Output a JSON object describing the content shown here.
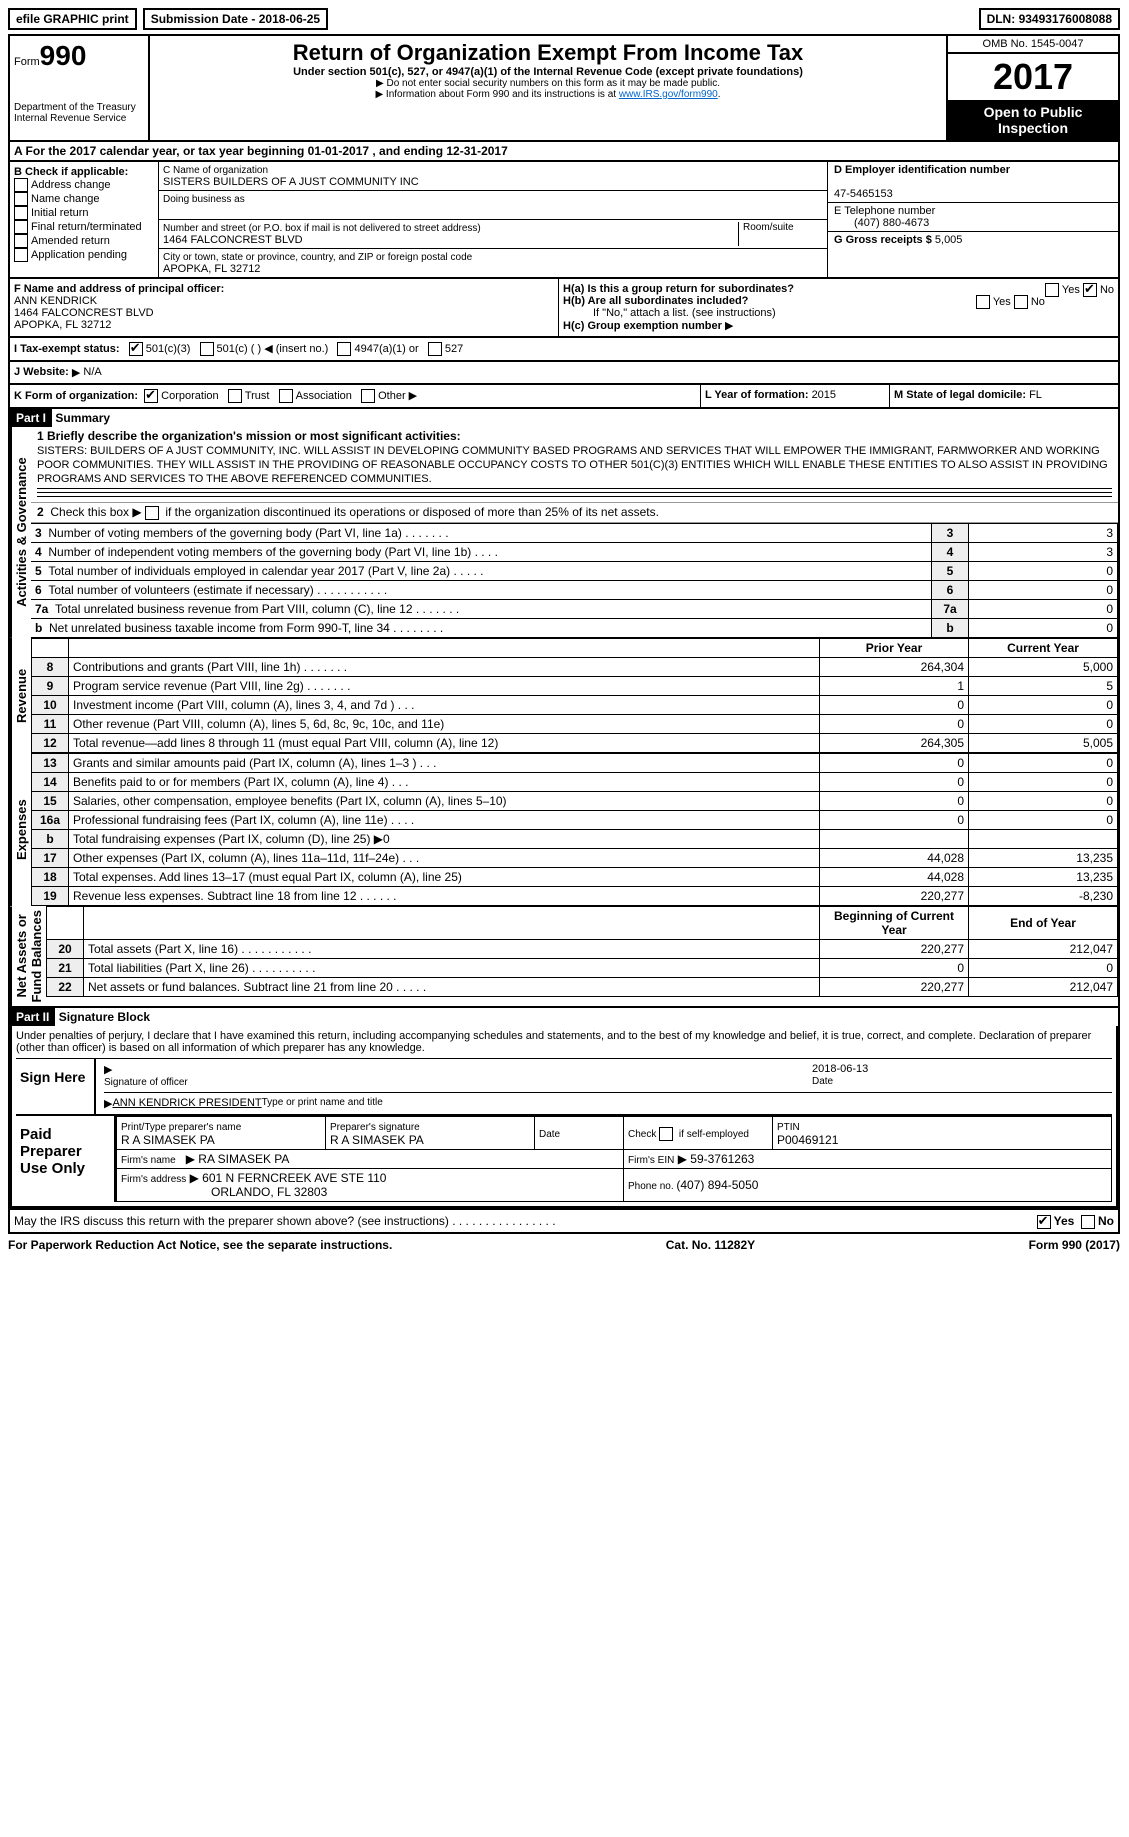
{
  "topbar": {
    "efile": "efile GRAPHIC print",
    "subdate_label": "Submission Date - ",
    "subdate": "2018-06-25",
    "dln_label": "DLN: ",
    "dln": "93493176008088"
  },
  "header": {
    "form_word": "Form",
    "form_num": "990",
    "dept1": "Department of the Treasury",
    "dept2": "Internal Revenue Service",
    "title": "Return of Organization Exempt From Income Tax",
    "sub1": "Under section 501(c), 527, or 4947(a)(1) of the Internal Revenue Code (except private foundations)",
    "sub2": "Do not enter social security numbers on this form as it may be made public.",
    "sub3": "Information about Form 990 and its instructions is at ",
    "link": "www.IRS.gov/form990",
    "omb": "OMB No. 1545-0047",
    "year": "2017",
    "open": "Open to Public Inspection"
  },
  "A": {
    "text": "A  For the 2017 calendar year, or tax year beginning 01-01-2017    , and ending 12-31-2017"
  },
  "B": {
    "title": "B Check if applicable:",
    "items": [
      "Address change",
      "Name change",
      "Initial return",
      "Final return/terminated",
      "Amended return",
      "Application pending"
    ]
  },
  "C": {
    "name_label": "C Name of organization",
    "name": "SISTERS BUILDERS OF A JUST COMMUNITY INC",
    "dba": "Doing business as",
    "street_label": "Number and street (or P.O. box if mail is not delivered to street address)",
    "room": "Room/suite",
    "street": "1464 FALCONCREST BLVD",
    "city_label": "City or town, state or province, country, and ZIP or foreign postal code",
    "city": "APOPKA, FL  32712"
  },
  "D": {
    "label": "D Employer identification number",
    "val": "47-5465153"
  },
  "E": {
    "label": "E Telephone number",
    "val": "(407) 880-4673"
  },
  "G": {
    "label": "G Gross receipts $ ",
    "val": "5,005"
  },
  "F": {
    "label": "F  Name and address of principal officer:",
    "name": "ANN KENDRICK",
    "street": "1464 FALCONCREST BLVD",
    "city": "APOPKA, FL  32712"
  },
  "H": {
    "a": "H(a)  Is this a group return for subordinates?",
    "b": "H(b)  Are all subordinates included?",
    "ifno": "If \"No,\" attach a list. (see instructions)",
    "c": "H(c)  Group exemption number",
    "yes": "Yes",
    "no": "No"
  },
  "I": {
    "label": "I  Tax-exempt status:",
    "opts": [
      "501(c)(3)",
      "501(c) (  )",
      "(insert no.)",
      "4947(a)(1) or",
      "527"
    ]
  },
  "J": {
    "label": "J  Website:",
    "val": "N/A"
  },
  "K": {
    "label": "K Form of organization:",
    "opts": [
      "Corporation",
      "Trust",
      "Association",
      "Other"
    ]
  },
  "L": {
    "label": "L Year of formation: ",
    "val": "2015"
  },
  "M": {
    "label": "M State of legal domicile: ",
    "val": "FL"
  },
  "partI": {
    "hdr": "Part I",
    "title": "Summary",
    "l1": "1  Briefly describe the organization's mission or most significant activities:",
    "mission": "SISTERS: BUILDERS OF A JUST COMMUNITY, INC. WILL ASSIST IN DEVELOPING COMMUNITY BASED PROGRAMS AND SERVICES THAT WILL EMPOWER THE IMMIGRANT, FARMWORKER AND WORKING POOR COMMUNITIES. THEY WILL ASSIST IN THE PROVIDING OF REASONABLE OCCUPANCY COSTS TO OTHER 501(C)(3) ENTITIES WHICH WILL ENABLE THESE ENTITIES TO ALSO ASSIST IN PROVIDING PROGRAMS AND SERVICES TO THE ABOVE REFERENCED COMMUNITIES.",
    "l2": "2   Check this box        if the organization discontinued its operations or disposed of more than 25% of its net assets.",
    "govrows": [
      {
        "n": "3",
        "d": "Number of voting members of the governing body (Part VI, line 1a)   .    .    .    .    .    .    .",
        "v": "3"
      },
      {
        "n": "4",
        "d": "Number of independent voting members of the governing body (Part VI, line 1b)    .    .    .    .",
        "v": "3"
      },
      {
        "n": "5",
        "d": "Total number of individuals employed in calendar year 2017 (Part V, line 2a)    .    .    .    .    .",
        "v": "0"
      },
      {
        "n": "6",
        "d": "Total number of volunteers (estimate if necessary)   .    .    .    .    .    .    .    .    .    .    .",
        "v": "0"
      },
      {
        "n": "7a",
        "d": "Total unrelated business revenue from Part VIII, column (C), line 12   .    .    .    .    .    .    .",
        "v": "0"
      },
      {
        "n": "b",
        "d": "Net unrelated business taxable income from Form 990-T, line 34   .    .    .    .    .    .    .    .",
        "v": "0"
      }
    ],
    "colhdr_prior": "Prior Year",
    "colhdr_curr": "Current Year",
    "revrows": [
      {
        "n": "8",
        "d": "Contributions and grants (Part VIII, line 1h)   .    .    .    .    .    .    .",
        "p": "264,304",
        "c": "5,000"
      },
      {
        "n": "9",
        "d": "Program service revenue (Part VIII, line 2g)   .    .    .    .    .    .    .",
        "p": "1",
        "c": "5"
      },
      {
        "n": "10",
        "d": "Investment income (Part VIII, column (A), lines 3, 4, and 7d )   .    .    .",
        "p": "0",
        "c": "0"
      },
      {
        "n": "11",
        "d": "Other revenue (Part VIII, column (A), lines 5, 6d, 8c, 9c, 10c, and 11e)",
        "p": "0",
        "c": "0"
      },
      {
        "n": "12",
        "d": "Total revenue—add lines 8 through 11 (must equal Part VIII, column (A), line 12)",
        "p": "264,305",
        "c": "5,005"
      }
    ],
    "exprows": [
      {
        "n": "13",
        "d": "Grants and similar amounts paid (Part IX, column (A), lines 1–3 )   .    .    .",
        "p": "0",
        "c": "0"
      },
      {
        "n": "14",
        "d": "Benefits paid to or for members (Part IX, column (A), line 4)   .    .    .",
        "p": "0",
        "c": "0"
      },
      {
        "n": "15",
        "d": "Salaries, other compensation, employee benefits (Part IX, column (A), lines 5–10)",
        "p": "0",
        "c": "0"
      },
      {
        "n": "16a",
        "d": "Professional fundraising fees (Part IX, column (A), line 11e)   .    .    .    .",
        "p": "0",
        "c": "0"
      },
      {
        "n": "b",
        "d": "Total fundraising expenses (Part IX, column (D), line 25) ▶0",
        "p": "",
        "c": ""
      },
      {
        "n": "17",
        "d": "Other expenses (Part IX, column (A), lines 11a–11d, 11f–24e)   .    .    .",
        "p": "44,028",
        "c": "13,235"
      },
      {
        "n": "18",
        "d": "Total expenses. Add lines 13–17 (must equal Part IX, column (A), line 25)",
        "p": "44,028",
        "c": "13,235"
      },
      {
        "n": "19",
        "d": "Revenue less expenses. Subtract line 18 from line 12 .    .    .    .    .    .",
        "p": "220,277",
        "c": "-8,230"
      }
    ],
    "colhdr_beg": "Beginning of Current Year",
    "colhdr_end": "End of Year",
    "netrows": [
      {
        "n": "20",
        "d": "Total assets (Part X, line 16)   .    .    .    .    .    .    .    .    .    .    .",
        "p": "220,277",
        "c": "212,047"
      },
      {
        "n": "21",
        "d": "Total liabilities (Part X, line 26)   .    .    .    .    .    .    .    .    .    .",
        "p": "0",
        "c": "0"
      },
      {
        "n": "22",
        "d": "Net assets or fund balances. Subtract line 21 from line 20 .    .    .    .    .",
        "p": "220,277",
        "c": "212,047"
      }
    ],
    "vlabels": {
      "gov": "Activities & Governance",
      "rev": "Revenue",
      "exp": "Expenses",
      "net": "Net Assets or\nFund Balances"
    }
  },
  "partII": {
    "hdr": "Part II",
    "title": "Signature Block",
    "decl": "Under penalties of perjury, I declare that I have examined this return, including accompanying schedules and statements, and to the best of my knowledge and belief, it is true, correct, and complete. Declaration of preparer (other than officer) is based on all information of which preparer has any knowledge.",
    "sign_here": "Sign Here",
    "sig_officer": "Signature of officer",
    "date": "Date",
    "sigdate": "2018-06-13",
    "typed": "ANN KENDRICK PRESIDENT",
    "typed_label": "Type or print name and title",
    "paid": "Paid Preparer Use Only",
    "prep_name_label": "Print/Type preparer's name",
    "prep_name": "R A SIMASEK PA",
    "prep_sig_label": "Preparer's signature",
    "prep_sig": "R A SIMASEK PA",
    "prep_date": "Date",
    "check_self": "Check        if self-employed",
    "ptin_label": "PTIN",
    "ptin": "P00469121",
    "firm_name_label": "Firm's name",
    "firm_name": "RA SIMASEK PA",
    "firm_ein_label": "Firm's EIN",
    "firm_ein": "59-3761263",
    "firm_addr_label": "Firm's address",
    "firm_addr1": "601 N FERNCREEK AVE STE 110",
    "firm_addr2": "ORLANDO, FL  32803",
    "phone_label": "Phone no. ",
    "phone": "(407) 894-5050",
    "discuss": "May the IRS discuss this return with the preparer shown above? (see instructions)   .    .    .    .    .    .    .    .    .    .    .    .    .    .    .    .",
    "yes": "Yes",
    "no": "No"
  },
  "footer": {
    "left": "For Paperwork Reduction Act Notice, see the separate instructions.",
    "cat": "Cat. No. 11282Y",
    "right": "Form 990 (2017)"
  }
}
